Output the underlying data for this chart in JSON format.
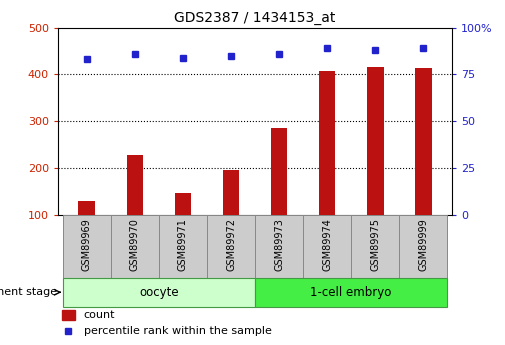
{
  "title": "GDS2387 / 1434153_at",
  "categories": [
    "GSM89969",
    "GSM89970",
    "GSM89971",
    "GSM89972",
    "GSM89973",
    "GSM89974",
    "GSM89975",
    "GSM89999"
  ],
  "counts": [
    130,
    228,
    148,
    197,
    285,
    408,
    415,
    413
  ],
  "percentiles": [
    83,
    86,
    84,
    85,
    86,
    89,
    88,
    89
  ],
  "ylim_left": [
    100,
    500
  ],
  "ylim_right": [
    0,
    100
  ],
  "yticks_left": [
    100,
    200,
    300,
    400,
    500
  ],
  "yticks_right": [
    0,
    25,
    50,
    75,
    100
  ],
  "yticklabels_right": [
    "0",
    "25",
    "50",
    "75",
    "100%"
  ],
  "bar_color": "#bb1111",
  "dot_color": "#2222cc",
  "left_tick_color": "#cc2200",
  "right_tick_color": "#2222cc",
  "grid_color": "#000000",
  "groups": [
    {
      "label": "oocyte",
      "start": 0,
      "end": 3
    },
    {
      "label": "1-cell embryo",
      "start": 4,
      "end": 7
    }
  ],
  "group_header": "development stage",
  "bg_label_gray": "#cccccc",
  "bg_oocyte": "#ccffcc",
  "bg_embryo": "#44ee44",
  "bar_width": 0.35,
  "dot_size": 5
}
